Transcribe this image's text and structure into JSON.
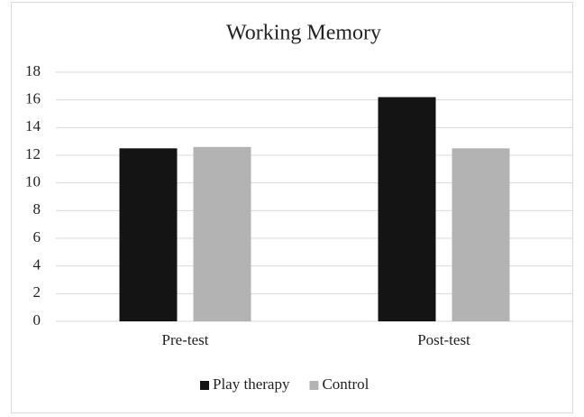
{
  "chart_data": {
    "type": "bar",
    "title": "Working Memory",
    "categories": [
      "Pre-test",
      "Post-test"
    ],
    "series": [
      {
        "name": "Play therapy",
        "color": "#141414",
        "values": [
          12.5,
          16.2
        ]
      },
      {
        "name": "Control",
        "color": "#b3b3b3",
        "values": [
          12.6,
          12.5
        ]
      }
    ],
    "ylim": [
      0,
      18
    ],
    "yticks": [
      0,
      2,
      4,
      6,
      8,
      10,
      12,
      14,
      16,
      18
    ],
    "grid": true,
    "legend": "bottom"
  }
}
